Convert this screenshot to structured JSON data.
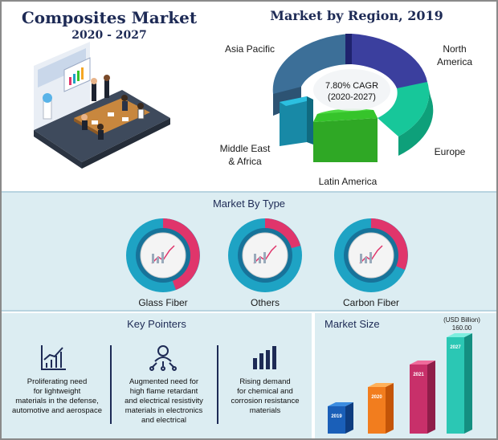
{
  "header": {
    "title": "Composites Market",
    "years": "2020 - 2027"
  },
  "region": {
    "title": "Market by Region, 2019",
    "cagr_line1": "7.80% CAGR",
    "cagr_line2": "(2020-2027)",
    "labels": {
      "asia_pacific": "Asia Pacific",
      "north_america_1": "North",
      "north_america_2": "America",
      "europe": "Europe",
      "latin_america": "Latin America",
      "mea_1": "Middle East",
      "mea_2": "& Africa"
    }
  },
  "market_by_type": {
    "title": "Market By Type",
    "items": [
      {
        "label": "Glass Fiber"
      },
      {
        "label": "Others"
      },
      {
        "label": "Carbon Fiber"
      }
    ]
  },
  "key_pointers": {
    "title": "Key Pointers",
    "items": [
      {
        "icon": "bar-growth-icon",
        "text_lines": [
          "Proliferating need",
          "for lightweight",
          "materials in the defense,",
          "automotive and aerospace"
        ]
      },
      {
        "icon": "person-network-icon",
        "text_lines": [
          "Augmented need for",
          "high flame retardant",
          "and electrical resistivity",
          "materials in electronics",
          "and electrical"
        ]
      },
      {
        "icon": "bar-chart-icon",
        "text_lines": [
          "Rising demand",
          "for chemical and",
          "corrosion resistance",
          "materials"
        ]
      }
    ]
  },
  "market_size": {
    "title": "Market Size",
    "unit": "(USD Billion)",
    "value_label": "160.00"
  },
  "colors": {
    "navy": "#1d2a55",
    "pink": "#e0356b",
    "teal": "#1ea3c4",
    "green": "#36c42b",
    "sea_green": "#17c79a",
    "indigo": "#3b3f9e",
    "slate": "#3c6f98",
    "panel_bg": "#dcedf2"
  },
  "chart_data": [
    {
      "type": "pie",
      "title": "Market by Region, 2019",
      "categories": [
        "Asia Pacific",
        "North America",
        "Europe",
        "Latin America",
        "Middle East & Africa"
      ],
      "annotations": [
        "7.80% CAGR",
        "(2020-2027)"
      ]
    },
    {
      "type": "pie",
      "title": "Market By Type",
      "categories": [
        "Glass Fiber",
        "Others",
        "Carbon Fiber"
      ]
    },
    {
      "type": "bar",
      "title": "Market Size",
      "ylabel": "(USD Billion)",
      "categories": [
        "2019",
        "2020",
        "2021",
        "2027"
      ],
      "annotations": [
        "160.00"
      ]
    }
  ]
}
